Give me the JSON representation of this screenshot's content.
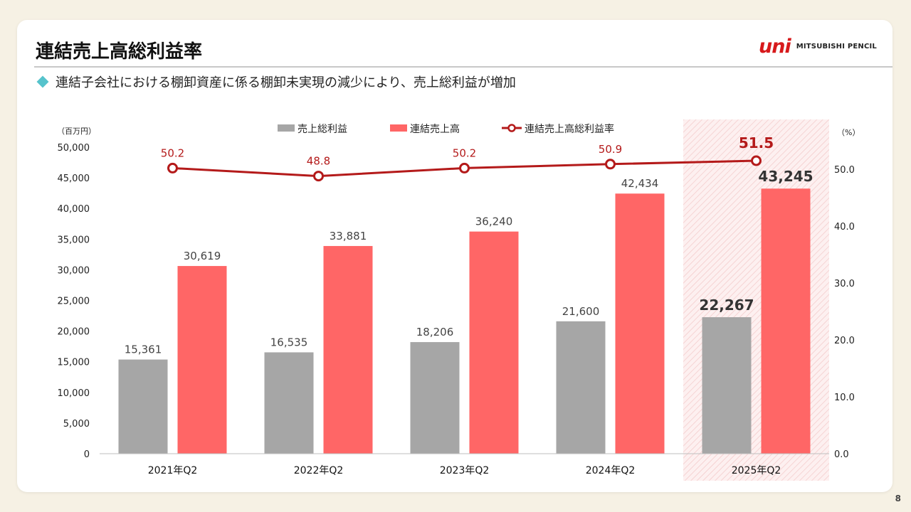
{
  "header": {
    "title": "連結売上高総利益率",
    "logo_mark": "uni",
    "logo_text": "MITSUBISHI PENCIL"
  },
  "bullet": {
    "text": "連結子会社における棚卸資産に係る棚卸未実現の減少により、売上総利益が増加"
  },
  "page_number": "8",
  "colors": {
    "gross_profit": "#a6a6a6",
    "sales": "#ff6666",
    "rate_line": "#b41a1a",
    "highlight_fill": "#fbe9e9",
    "accent_diamond": "#56c3cc"
  },
  "chart_data": {
    "type": "bar",
    "categories": [
      "2021年Q2",
      "2022年Q2",
      "2023年Q2",
      "2024年Q2",
      "2025年Q2"
    ],
    "highlight_category": "2025年Q2",
    "series": [
      {
        "name": "売上総利益",
        "kind": "bar",
        "axis": "left",
        "values": [
          15361,
          16535,
          18206,
          21600,
          22267
        ],
        "labels": [
          "15,361",
          "16,535",
          "18,206",
          "21,600",
          "22,267"
        ]
      },
      {
        "name": "連結売上高",
        "kind": "bar",
        "axis": "left",
        "values": [
          30619,
          33881,
          36240,
          42434,
          43245
        ],
        "labels": [
          "30,619",
          "33,881",
          "36,240",
          "42,434",
          "43,245"
        ]
      },
      {
        "name": "連結売上高総利益率",
        "kind": "line",
        "axis": "right",
        "values": [
          50.2,
          48.8,
          50.2,
          50.9,
          51.5
        ],
        "labels": [
          "50.2",
          "48.8",
          "50.2",
          "50.9",
          "51.5"
        ]
      }
    ],
    "left_axis": {
      "unit": "（百万円）",
      "range": [
        0,
        50000
      ],
      "ticks": [
        0,
        5000,
        10000,
        15000,
        20000,
        25000,
        30000,
        35000,
        40000,
        45000,
        50000
      ],
      "tick_labels": [
        "0",
        "5,000",
        "10,000",
        "15,000",
        "20,000",
        "25,000",
        "30,000",
        "35,000",
        "40,000",
        "45,000",
        "50,000"
      ]
    },
    "right_axis": {
      "unit": "（%）",
      "range": [
        0,
        54
      ],
      "ticks": [
        0,
        10,
        20,
        30,
        40,
        50
      ],
      "tick_labels": [
        "0.0",
        "10.0",
        "20.0",
        "30.0",
        "40.0",
        "50.0"
      ]
    },
    "legend_position": "top-center",
    "grid": false
  }
}
